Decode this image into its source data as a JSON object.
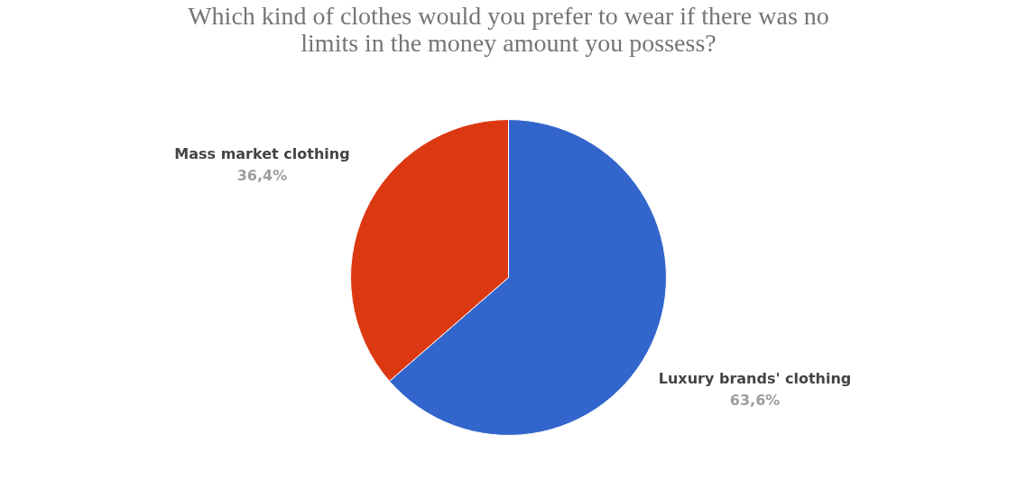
{
  "chart_data": {
    "type": "pie",
    "title": "Which kind of clothes would you prefer to wear if there was no\nlimits in the money amount you possess?",
    "categories": [
      "Luxury brands' clothing",
      "Mass market clothing"
    ],
    "values": [
      63.6,
      36.4
    ],
    "colors": [
      "#3366cc",
      "#dc3912"
    ],
    "value_labels": [
      "63,6%",
      "36,4%"
    ],
    "legend": false
  }
}
